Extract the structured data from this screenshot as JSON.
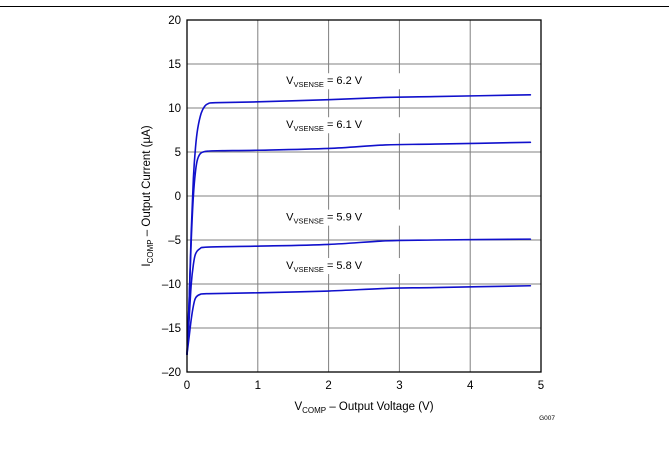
{
  "chart_data": {
    "type": "line",
    "xlabel_main": "V",
    "xlabel_sub": "COMP",
    "xlabel_rest": " – Output Voltage (V)",
    "ylabel_main": "I",
    "ylabel_sub": "COMP",
    "ylabel_rest": " – Output Current (µA)",
    "figure_id": "G007",
    "xlim": [
      0,
      5
    ],
    "ylim": [
      -20,
      20
    ],
    "x_ticks": [
      0,
      1,
      2,
      3,
      4,
      5
    ],
    "y_ticks": [
      20,
      15,
      10,
      5,
      0,
      -5,
      -10,
      -15,
      -20
    ],
    "y_tick_labels": [
      "20",
      "15",
      "10",
      "5",
      "0",
      "–5",
      "–10",
      "–15",
      "–20"
    ],
    "grid": true,
    "line_color": "#1010cc",
    "series": [
      {
        "label_main": "V",
        "label_sub": "VSENSE",
        "label_rest": " = 6.2 V",
        "label_x": 1.4,
        "label_y": 12.7,
        "points": [
          [
            0.0,
            -18
          ],
          [
            0.03,
            -12
          ],
          [
            0.06,
            -4
          ],
          [
            0.09,
            2
          ],
          [
            0.12,
            5.5
          ],
          [
            0.15,
            7.6
          ],
          [
            0.2,
            9.4
          ],
          [
            0.25,
            10.2
          ],
          [
            0.3,
            10.5
          ],
          [
            0.4,
            10.6
          ],
          [
            1.0,
            10.7
          ],
          [
            2.0,
            10.95
          ],
          [
            2.8,
            11.2
          ],
          [
            3.5,
            11.3
          ],
          [
            4.85,
            11.5
          ]
        ]
      },
      {
        "label_main": "V",
        "label_sub": "VSENSE",
        "label_rest": " = 6.1 V",
        "label_x": 1.4,
        "label_y": 7.7,
        "points": [
          [
            0.0,
            -18
          ],
          [
            0.03,
            -12
          ],
          [
            0.06,
            -5
          ],
          [
            0.09,
            0
          ],
          [
            0.12,
            2.8
          ],
          [
            0.15,
            4.2
          ],
          [
            0.2,
            4.9
          ],
          [
            0.3,
            5.1
          ],
          [
            0.5,
            5.15
          ],
          [
            1.0,
            5.2
          ],
          [
            2.0,
            5.4
          ],
          [
            2.8,
            5.8
          ],
          [
            3.5,
            5.9
          ],
          [
            4.85,
            6.1
          ]
        ]
      },
      {
        "label_main": "V",
        "label_sub": "VSENSE",
        "label_rest": " = 5.9 V",
        "label_x": 1.4,
        "label_y": -2.8,
        "points": [
          [
            0.0,
            -18
          ],
          [
            0.03,
            -14
          ],
          [
            0.06,
            -10
          ],
          [
            0.09,
            -7.8
          ],
          [
            0.12,
            -6.6
          ],
          [
            0.18,
            -6.0
          ],
          [
            0.3,
            -5.8
          ],
          [
            1.0,
            -5.7
          ],
          [
            2.0,
            -5.5
          ],
          [
            2.8,
            -5.1
          ],
          [
            3.5,
            -5.0
          ],
          [
            4.85,
            -4.9
          ]
        ]
      },
      {
        "label_main": "V",
        "label_sub": "VSENSE",
        "label_rest": " = 5.8 V",
        "label_x": 1.4,
        "label_y": -8.3,
        "points": [
          [
            0.0,
            -18
          ],
          [
            0.03,
            -16
          ],
          [
            0.06,
            -14
          ],
          [
            0.09,
            -12.5
          ],
          [
            0.12,
            -11.6
          ],
          [
            0.18,
            -11.2
          ],
          [
            0.3,
            -11.1
          ],
          [
            1.0,
            -11.0
          ],
          [
            2.0,
            -10.8
          ],
          [
            2.8,
            -10.5
          ],
          [
            3.5,
            -10.4
          ],
          [
            4.85,
            -10.2
          ]
        ]
      }
    ]
  }
}
